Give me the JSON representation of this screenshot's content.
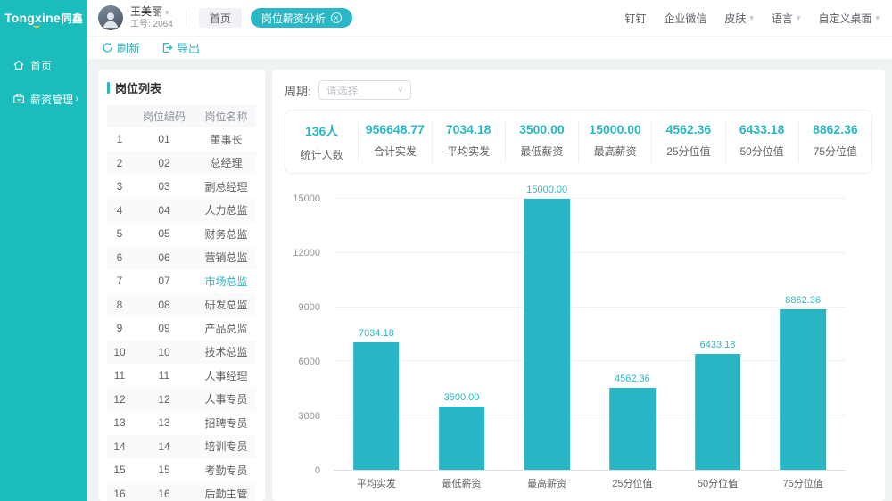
{
  "brand": {
    "logo_en": "Tongxine",
    "logo_cn": "同鑫"
  },
  "header": {
    "user": {
      "name": "王美丽",
      "id": "工号: 2064"
    },
    "tabs": [
      {
        "label": "首页",
        "active": false,
        "closable": false
      },
      {
        "label": "岗位薪资分析",
        "active": true,
        "closable": true
      }
    ],
    "right_menu": [
      {
        "label": "钉钉",
        "dropdown": false
      },
      {
        "label": "企业微信",
        "dropdown": false
      },
      {
        "label": "皮肤",
        "dropdown": true
      },
      {
        "label": "语言",
        "dropdown": true
      },
      {
        "label": "自定义桌面",
        "dropdown": true
      }
    ]
  },
  "sidebar": {
    "items": [
      {
        "label": "首页",
        "icon": "home-icon",
        "expandable": false
      },
      {
        "label": "薪资管理",
        "icon": "salary-icon",
        "expandable": true
      }
    ]
  },
  "toolbar": {
    "refresh_label": "刷新",
    "export_label": "导出"
  },
  "job_list": {
    "title": "岗位列表",
    "columns": [
      "",
      "岗位编码",
      "岗位名称"
    ],
    "selected_row": 7,
    "rows": [
      {
        "no": "1",
        "code": "01",
        "name": "董事长"
      },
      {
        "no": "2",
        "code": "02",
        "name": "总经理"
      },
      {
        "no": "3",
        "code": "03",
        "name": "副总经理"
      },
      {
        "no": "4",
        "code": "04",
        "name": "人力总监"
      },
      {
        "no": "5",
        "code": "05",
        "name": "财务总监"
      },
      {
        "no": "6",
        "code": "06",
        "name": "营销总监"
      },
      {
        "no": "7",
        "code": "07",
        "name": "市场总监"
      },
      {
        "no": "8",
        "code": "08",
        "name": "研发总监"
      },
      {
        "no": "9",
        "code": "09",
        "name": "产品总监"
      },
      {
        "no": "10",
        "code": "10",
        "name": "技术总监"
      },
      {
        "no": "11",
        "code": "11",
        "name": "人事经理"
      },
      {
        "no": "12",
        "code": "12",
        "name": "人事专员"
      },
      {
        "no": "13",
        "code": "13",
        "name": "招聘专员"
      },
      {
        "no": "14",
        "code": "14",
        "name": "培训专员"
      },
      {
        "no": "15",
        "code": "15",
        "name": "考勤专员"
      },
      {
        "no": "16",
        "code": "16",
        "name": "后勤主管"
      }
    ]
  },
  "filter": {
    "label": "周期:",
    "placeholder": "请选择"
  },
  "stats": [
    {
      "value": "136人",
      "label": "统计人数"
    },
    {
      "value": "956648.77",
      "label": "合计实发"
    },
    {
      "value": "7034.18",
      "label": "平均实发"
    },
    {
      "value": "3500.00",
      "label": "最低薪资"
    },
    {
      "value": "15000.00",
      "label": "最高薪资"
    },
    {
      "value": "4562.36",
      "label": "25分位值"
    },
    {
      "value": "6433.18",
      "label": "50分位值"
    },
    {
      "value": "8862.36",
      "label": "75分位值"
    }
  ],
  "chart_data": {
    "type": "bar",
    "categories": [
      "平均实发",
      "最低薪资",
      "最高薪资",
      "25分位值",
      "50分位值",
      "75分位值"
    ],
    "values": [
      7034.18,
      3500.0,
      15000.0,
      4562.36,
      6433.18,
      8862.36
    ],
    "value_labels": [
      "7034.18",
      "3500.00",
      "15000.00",
      "4562.36",
      "6433.18",
      "8862.36"
    ],
    "title": "",
    "xlabel": "",
    "ylabel": "",
    "ylim": [
      0,
      15000
    ],
    "yticks": [
      0,
      3000,
      6000,
      9000,
      12000,
      15000
    ],
    "grid": true,
    "legend": "none",
    "bar_color": "#29b5c3"
  },
  "glyphs": {
    "chevron_down": "▾",
    "select_chevron": "˅",
    "expand_arrow": "›",
    "close": "×"
  },
  "colors": {
    "accent": "#2bb7c5",
    "sidebar": "#1bbdbc",
    "bar": "#29b5c3"
  }
}
